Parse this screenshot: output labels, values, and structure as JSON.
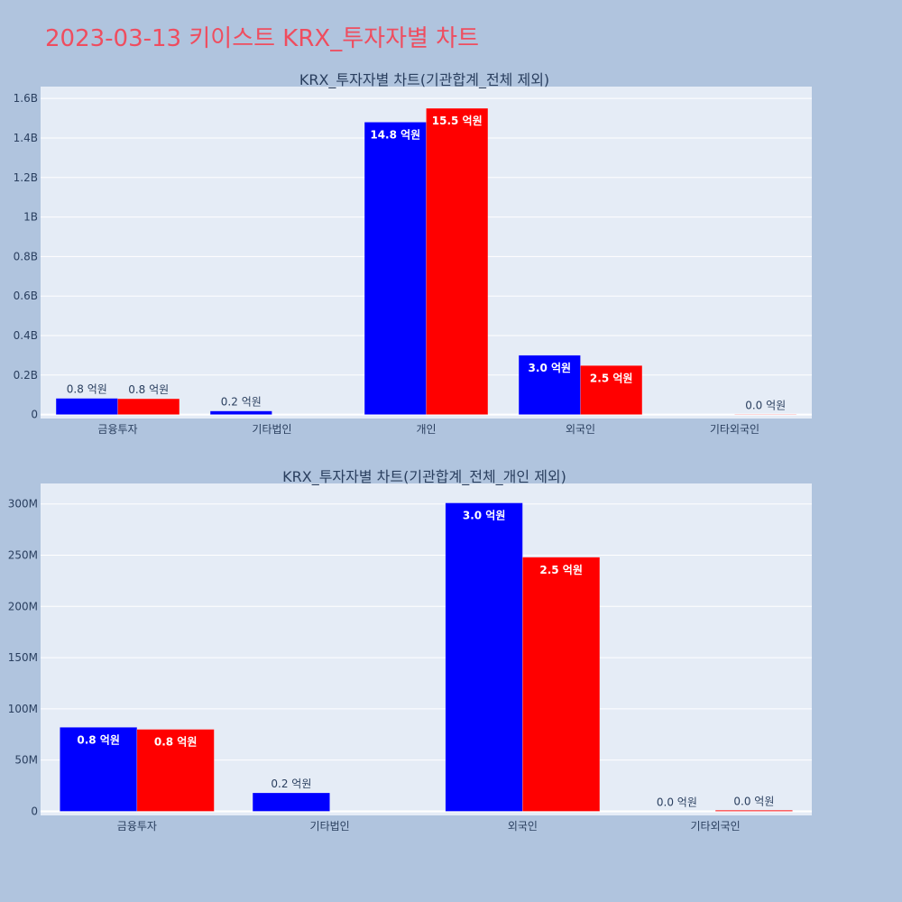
{
  "page_title": "2023-03-13 키이스트 KRX_투자자별 차트",
  "colors": {
    "background": "#b0c4de",
    "title": "#ef4d5f",
    "plot_bg": "#e5ecf6",
    "series_a": "#0000ff",
    "series_b": "#ff0000",
    "text": "#2a3f5f"
  },
  "chart_data": [
    {
      "type": "bar",
      "title": "KRX_투자자별 차트(기관합계_전체 제외)",
      "categories": [
        "금융투자",
        "기타법인",
        "개인",
        "외국인",
        "기타외국인"
      ],
      "ylim": [
        -20000000,
        1660000000
      ],
      "yticks": [
        0,
        200000000,
        400000000,
        600000000,
        800000000,
        1000000000,
        1200000000,
        1400000000,
        1600000000
      ],
      "ytick_labels": [
        "0",
        "0.2B",
        "0.4B",
        "0.6B",
        "0.8B",
        "1B",
        "1.2B",
        "1.4B",
        "1.6B"
      ],
      "grid": true,
      "series": [
        {
          "color": "#0000ff",
          "values": [
            82000000,
            18000000,
            1480000000,
            300000000,
            0
          ],
          "labels": [
            "0.8 억원",
            "0.2 억원",
            "14.8 억원",
            "3.0 억원",
            null
          ]
        },
        {
          "color": "#ff0000",
          "values": [
            80000000,
            0,
            1550000000,
            248000000,
            1000000
          ],
          "labels": [
            "0.8 억원",
            null,
            "15.5 억원",
            "2.5 억원",
            "0.0 억원"
          ]
        }
      ]
    },
    {
      "type": "bar",
      "title": "KRX_투자자별 차트(기관합계_전체_개인 제외)",
      "categories": [
        "금융투자",
        "기타법인",
        "외국인",
        "기타외국인"
      ],
      "ylim": [
        -4000000,
        320000000
      ],
      "yticks": [
        0,
        50000000,
        100000000,
        150000000,
        200000000,
        250000000,
        300000000
      ],
      "ytick_labels": [
        "0",
        "50M",
        "100M",
        "150M",
        "200M",
        "250M",
        "300M"
      ],
      "grid": true,
      "series": [
        {
          "color": "#0000ff",
          "values": [
            82000000,
            18000000,
            301000000,
            0
          ],
          "labels": [
            "0.8 억원",
            "0.2 억원",
            "3.0 억원",
            "0.0 억원"
          ]
        },
        {
          "color": "#ff0000",
          "values": [
            80000000,
            0,
            248000000,
            1000000
          ],
          "labels": [
            "0.8 억원",
            null,
            "2.5 억원",
            "0.0 억원"
          ]
        }
      ]
    }
  ]
}
